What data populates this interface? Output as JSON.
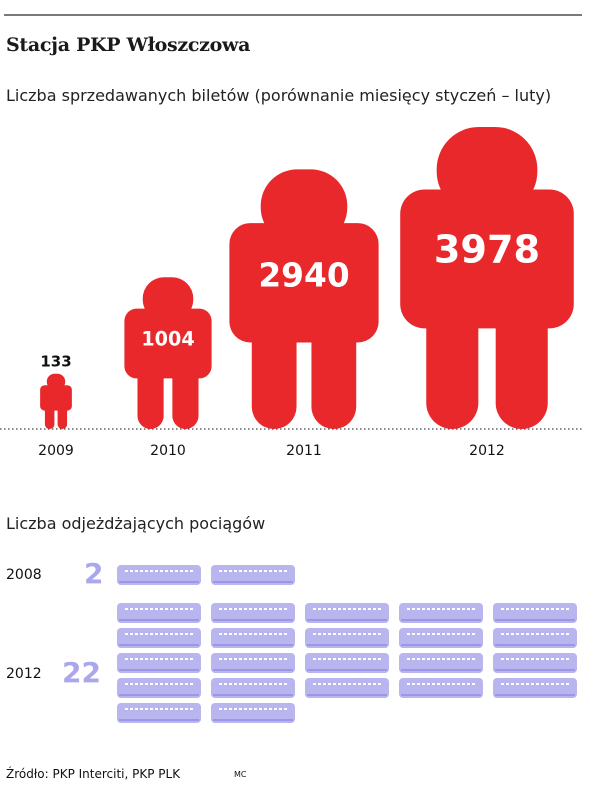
{
  "header": {
    "title": "Stacja PKP Włoszczowa",
    "subtitle_tickets": "Liczba sprzedawanych biletów (porównanie miesięcy styczeń – luty)",
    "subtitle_trains": "Liczba odjeżdżających pociągów"
  },
  "colors": {
    "people": "#e8282b",
    "train": "#b9b6ef",
    "train_dark": "#9b96e6",
    "train_number": "#aaa7ec"
  },
  "chart_data": [
    {
      "type": "bar",
      "title": "Liczba sprzedawanych biletów (porównanie miesięcy styczeń – luty)",
      "marker": "person-icon",
      "categories": [
        "2009",
        "2010",
        "2011",
        "2012"
      ],
      "values": [
        133,
        1004,
        2940,
        3978
      ]
    },
    {
      "type": "bar",
      "title": "Liczba odjeżdżających pociągów",
      "marker": "train-icon",
      "categories": [
        "2008",
        "2012"
      ],
      "values": [
        2,
        22
      ]
    }
  ],
  "footer": {
    "source": "Źródło: PKP Interciti, PKP PLK",
    "author": "MC"
  }
}
